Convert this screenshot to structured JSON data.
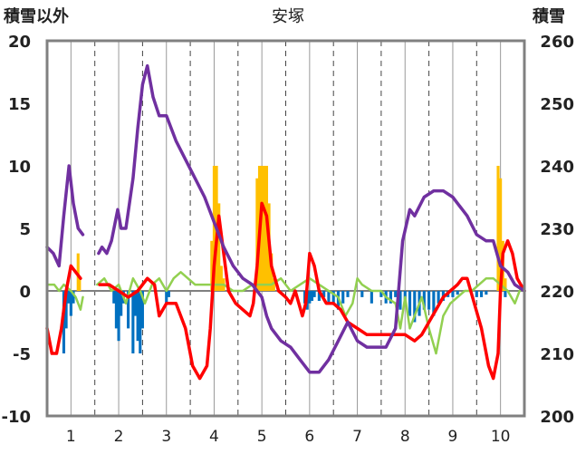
{
  "chart_data": {
    "type": "line",
    "title": "安塚",
    "ylabel_left": "積雪以外",
    "ylabel_right": "積雪",
    "x_ticks": [
      "1",
      "2",
      "3",
      "4",
      "5",
      "6",
      "7",
      "8",
      "9",
      "10"
    ],
    "xlim": [
      0.5,
      10.5
    ],
    "ylim_left": [
      -10,
      20
    ],
    "ylim_right": [
      200,
      260
    ],
    "y_ticks_left": [
      "20",
      "15",
      "10",
      "5",
      "0",
      "-5",
      "-10"
    ],
    "y_ticks_right": [
      "260",
      "250",
      "240",
      "230",
      "220",
      "210",
      "200"
    ],
    "grid": "dashed vertical at day boundaries, solid vertical at each day center",
    "colors": {
      "snow_depth": "#7030a0",
      "temperature": "#ff0000",
      "sunshine": "#92d050",
      "snowfall": "#ffc000",
      "precip_negative": "#0070c0",
      "frame": "#808080"
    },
    "series": [
      {
        "key": "snow_depth",
        "axis": "right",
        "segments": [
          [
            [
              0.5,
              227
            ],
            [
              0.63,
              226
            ],
            [
              0.75,
              224
            ],
            [
              0.85,
              232
            ],
            [
              0.96,
              240
            ],
            [
              1.05,
              234
            ],
            [
              1.15,
              230
            ],
            [
              1.25,
              229
            ]
          ],
          [
            [
              1.58,
              226
            ],
            [
              1.65,
              227
            ],
            [
              1.75,
              226
            ],
            [
              1.85,
              228
            ],
            [
              1.98,
              233
            ],
            [
              2.05,
              230
            ],
            [
              2.15,
              230
            ],
            [
              2.3,
              238
            ],
            [
              2.4,
              246
            ],
            [
              2.5,
              253
            ],
            [
              2.6,
              256
            ],
            [
              2.72,
              251
            ],
            [
              2.85,
              248
            ],
            [
              3.0,
              248
            ],
            [
              3.2,
              244
            ],
            [
              3.4,
              241
            ],
            [
              3.6,
              238
            ],
            [
              3.8,
              235
            ],
            [
              4.0,
              231
            ],
            [
              4.2,
              227
            ],
            [
              4.4,
              224
            ],
            [
              4.6,
              222
            ],
            [
              4.8,
              221
            ],
            [
              5.0,
              219
            ],
            [
              5.1,
              216
            ],
            [
              5.2,
              214
            ],
            [
              5.4,
              212
            ],
            [
              5.6,
              211
            ],
            [
              5.8,
              209
            ],
            [
              6.0,
              207
            ],
            [
              6.2,
              207
            ],
            [
              6.4,
              209
            ],
            [
              6.6,
              212
            ],
            [
              6.8,
              215
            ],
            [
              7.0,
              212
            ],
            [
              7.2,
              211
            ],
            [
              7.4,
              211
            ],
            [
              7.6,
              211
            ],
            [
              7.8,
              214
            ],
            [
              7.95,
              228
            ],
            [
              8.1,
              233
            ],
            [
              8.2,
              232
            ],
            [
              8.4,
              235
            ],
            [
              8.6,
              236
            ],
            [
              8.8,
              236
            ],
            [
              9.0,
              235
            ],
            [
              9.3,
              232
            ],
            [
              9.5,
              229
            ],
            [
              9.7,
              228
            ],
            [
              9.85,
              228
            ],
            [
              10.0,
              224
            ],
            [
              10.15,
              223
            ],
            [
              10.3,
              221
            ],
            [
              10.5,
              220
            ]
          ]
        ]
      },
      {
        "key": "temperature",
        "axis": "left",
        "segments": [
          [
            [
              0.5,
              -3
            ],
            [
              0.6,
              -5
            ],
            [
              0.7,
              -5
            ],
            [
              0.8,
              -3
            ],
            [
              0.9,
              0
            ],
            [
              1.0,
              2
            ],
            [
              1.1,
              1.5
            ],
            [
              1.2,
              1
            ]
          ],
          [
            [
              1.6,
              0.5
            ],
            [
              1.8,
              0.5
            ],
            [
              2.0,
              0
            ],
            [
              2.2,
              -0.5
            ],
            [
              2.4,
              0
            ],
            [
              2.6,
              1
            ],
            [
              2.75,
              0.5
            ],
            [
              2.85,
              -2
            ],
            [
              3.0,
              -1
            ],
            [
              3.2,
              -1
            ],
            [
              3.4,
              -3
            ],
            [
              3.55,
              -6
            ],
            [
              3.7,
              -7
            ],
            [
              3.85,
              -6
            ],
            [
              3.92,
              -3
            ],
            [
              4.0,
              2
            ],
            [
              4.1,
              6
            ],
            [
              4.2,
              3
            ],
            [
              4.3,
              0
            ],
            [
              4.45,
              -1
            ],
            [
              4.6,
              -1.5
            ],
            [
              4.75,
              -2
            ],
            [
              4.82,
              -1
            ],
            [
              4.9,
              2
            ],
            [
              5.0,
              7
            ],
            [
              5.1,
              6
            ],
            [
              5.2,
              2
            ],
            [
              5.35,
              0
            ],
            [
              5.5,
              -0.5
            ],
            [
              5.6,
              -1
            ],
            [
              5.7,
              0
            ],
            [
              5.85,
              -2
            ],
            [
              5.92,
              -1
            ],
            [
              6.0,
              3
            ],
            [
              6.1,
              2
            ],
            [
              6.2,
              0
            ],
            [
              6.35,
              -1
            ],
            [
              6.5,
              -1
            ],
            [
              6.65,
              -1.5
            ],
            [
              6.8,
              -2.5
            ],
            [
              7.0,
              -3
            ],
            [
              7.2,
              -3.5
            ],
            [
              7.4,
              -3.5
            ],
            [
              7.6,
              -3.5
            ],
            [
              7.8,
              -3.5
            ],
            [
              8.0,
              -3.5
            ],
            [
              8.2,
              -4
            ],
            [
              8.35,
              -3.5
            ],
            [
              8.5,
              -2.5
            ],
            [
              8.65,
              -1.5
            ],
            [
              8.8,
              -0.5
            ],
            [
              8.95,
              0
            ],
            [
              9.1,
              0.5
            ],
            [
              9.2,
              1
            ],
            [
              9.3,
              1
            ],
            [
              9.45,
              -1
            ],
            [
              9.6,
              -3
            ],
            [
              9.75,
              -6
            ],
            [
              9.85,
              -7
            ],
            [
              9.95,
              -5
            ],
            [
              10.0,
              0
            ],
            [
              10.05,
              3
            ],
            [
              10.15,
              4
            ],
            [
              10.25,
              3
            ],
            [
              10.35,
              1
            ],
            [
              10.5,
              0
            ]
          ]
        ]
      },
      {
        "key": "sunshine",
        "axis": "left",
        "segments": [
          [
            [
              0.5,
              0.5
            ],
            [
              0.65,
              0.5
            ],
            [
              0.75,
              0
            ],
            [
              0.85,
              0.5
            ],
            [
              1.0,
              0
            ],
            [
              1.1,
              -0.5
            ],
            [
              1.15,
              -1
            ],
            [
              1.2,
              -1.5
            ],
            [
              1.25,
              -0.5
            ]
          ],
          [
            [
              1.55,
              0.5
            ],
            [
              1.7,
              1
            ],
            [
              1.85,
              0
            ],
            [
              2.0,
              0.5
            ],
            [
              2.15,
              -1
            ],
            [
              2.3,
              1
            ],
            [
              2.45,
              0
            ],
            [
              2.55,
              -1
            ],
            [
              2.7,
              0.5
            ],
            [
              2.85,
              1
            ],
            [
              3.0,
              0
            ],
            [
              3.15,
              1
            ],
            [
              3.3,
              1.5
            ],
            [
              3.45,
              1
            ],
            [
              3.6,
              0.5
            ],
            [
              3.8,
              0.5
            ],
            [
              4.0,
              0.5
            ],
            [
              4.2,
              0.5
            ],
            [
              4.4,
              0
            ],
            [
              4.6,
              0
            ],
            [
              4.8,
              0.5
            ],
            [
              5.0,
              0.5
            ],
            [
              5.2,
              0.5
            ],
            [
              5.4,
              1
            ],
            [
              5.6,
              0
            ],
            [
              5.8,
              0.5
            ],
            [
              6.0,
              1
            ],
            [
              6.2,
              0.5
            ],
            [
              6.4,
              0
            ],
            [
              6.6,
              -0.5
            ],
            [
              6.75,
              -2
            ],
            [
              6.9,
              -1
            ],
            [
              7.0,
              1
            ],
            [
              7.1,
              0.5
            ],
            [
              7.3,
              0
            ],
            [
              7.5,
              0
            ],
            [
              7.6,
              -0.5
            ],
            [
              7.8,
              -1
            ],
            [
              7.9,
              -3
            ],
            [
              8.0,
              -0.5
            ],
            [
              8.1,
              -3
            ],
            [
              8.2,
              -2
            ],
            [
              8.35,
              -0.5
            ],
            [
              8.5,
              -3
            ],
            [
              8.65,
              -5
            ],
            [
              8.8,
              -2
            ],
            [
              8.95,
              -1
            ],
            [
              9.1,
              -0.5
            ],
            [
              9.25,
              0
            ],
            [
              9.4,
              0
            ],
            [
              9.55,
              0.5
            ],
            [
              9.7,
              1
            ],
            [
              9.85,
              1
            ],
            [
              10.0,
              0.5
            ],
            [
              10.15,
              0
            ],
            [
              10.3,
              -1
            ],
            [
              10.4,
              0
            ],
            [
              10.5,
              0.5
            ]
          ]
        ]
      }
    ],
    "bars": [
      {
        "key": "snowfall",
        "axis": "left",
        "points": [
          [
            1.15,
            3
          ],
          [
            1.18,
            1
          ],
          [
            3.95,
            4
          ],
          [
            4.0,
            10
          ],
          [
            4.05,
            10
          ],
          [
            4.1,
            7
          ],
          [
            4.15,
            2
          ],
          [
            4.2,
            1
          ],
          [
            4.9,
            9
          ],
          [
            4.95,
            10
          ],
          [
            5.0,
            10
          ],
          [
            5.05,
            10
          ],
          [
            5.1,
            10
          ],
          [
            5.15,
            7
          ],
          [
            5.2,
            3
          ],
          [
            5.25,
            1
          ],
          [
            9.95,
            10
          ],
          [
            10.0,
            9
          ],
          [
            10.05,
            4
          ],
          [
            10.1,
            1
          ]
        ]
      },
      {
        "key": "precip_negative",
        "axis": "left",
        "points": [
          [
            0.85,
            -5
          ],
          [
            0.9,
            -3
          ],
          [
            0.95,
            -1
          ],
          [
            1.0,
            -2
          ],
          [
            1.05,
            -1
          ],
          [
            1.9,
            -1
          ],
          [
            1.95,
            -3
          ],
          [
            2.0,
            -4
          ],
          [
            2.05,
            -2
          ],
          [
            2.1,
            -1
          ],
          [
            2.2,
            -3
          ],
          [
            2.3,
            -5
          ],
          [
            2.35,
            -2
          ],
          [
            2.4,
            -4
          ],
          [
            2.45,
            -5
          ],
          [
            2.5,
            -3
          ],
          [
            3.0,
            -1
          ],
          [
            3.05,
            -0.5
          ],
          [
            5.9,
            -1
          ],
          [
            5.95,
            -1.5
          ],
          [
            6.0,
            -1
          ],
          [
            6.05,
            -0.8
          ],
          [
            6.1,
            -0.5
          ],
          [
            6.2,
            -0.8
          ],
          [
            6.3,
            -0.5
          ],
          [
            6.4,
            -1
          ],
          [
            6.5,
            -1
          ],
          [
            6.6,
            -1.5
          ],
          [
            6.7,
            -1
          ],
          [
            6.8,
            -0.5
          ],
          [
            7.1,
            -0.5
          ],
          [
            7.3,
            -1
          ],
          [
            7.5,
            -0.5
          ],
          [
            7.6,
            -1
          ],
          [
            7.7,
            -1
          ],
          [
            7.8,
            -0.5
          ],
          [
            7.9,
            -1.5
          ],
          [
            8.0,
            -1
          ],
          [
            8.1,
            -2
          ],
          [
            8.2,
            -2.5
          ],
          [
            8.3,
            -2
          ],
          [
            8.4,
            -1.5
          ],
          [
            8.5,
            -1.5
          ],
          [
            8.6,
            -2
          ],
          [
            8.7,
            -1
          ],
          [
            8.8,
            -0.8
          ],
          [
            8.9,
            -0.5
          ],
          [
            9.0,
            -0.5
          ],
          [
            9.1,
            -0.3
          ],
          [
            9.5,
            -0.5
          ],
          [
            9.6,
            -0.5
          ],
          [
            9.7,
            -0.3
          ],
          [
            10.1,
            -0.5
          ]
        ]
      }
    ]
  }
}
